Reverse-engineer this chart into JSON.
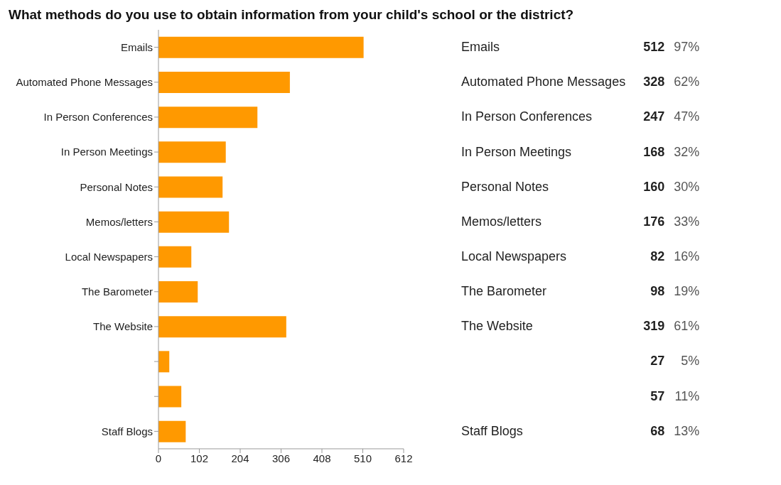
{
  "chart_data": {
    "type": "bar",
    "orientation": "horizontal",
    "title": "What methods do you use to obtain information from your child's school or the district?",
    "categories": [
      "Emails",
      "Automated Phone Messages",
      "In Person Conferences",
      "In Person Meetings",
      "Personal Notes",
      "Memos/letters",
      "Local Newspapers",
      "The Barometer",
      "The Website",
      null,
      null,
      "Staff Blogs"
    ],
    "values": [
      512,
      328,
      247,
      168,
      160,
      176,
      82,
      98,
      319,
      27,
      57,
      68
    ],
    "color": "#ff9900",
    "xlim": [
      0,
      612
    ],
    "xticks": [
      0,
      102,
      204,
      306,
      408,
      510,
      612
    ],
    "data_labels": true,
    "annotations": [
      "97%",
      "62%",
      "47%",
      "32%",
      "30%",
      "33%",
      "16%",
      "19%",
      "61%",
      "5%",
      "11%",
      "13%"
    ]
  }
}
